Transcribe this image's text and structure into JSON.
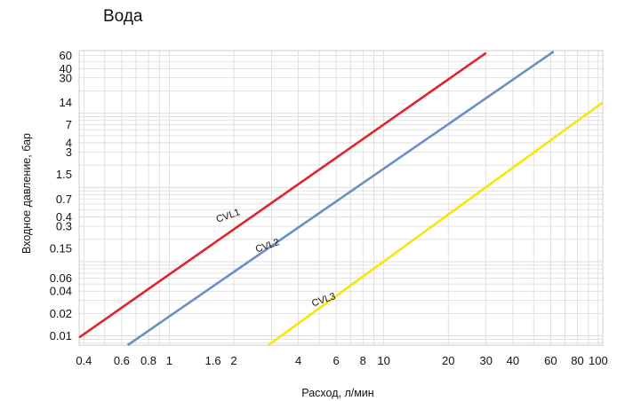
{
  "chart_data": {
    "type": "line",
    "title": "Вода",
    "xlabel": "Расход, л/мин",
    "ylabel": "Входное давление, бар",
    "x_scale": "log",
    "y_scale": "log",
    "xlim": [
      0.38,
      105
    ],
    "ylim": [
      0.0075,
      70
    ],
    "grid": true,
    "x_ticks": [
      {
        "v": 0.4,
        "label": "0.4"
      },
      {
        "v": 0.6,
        "label": "0.6"
      },
      {
        "v": 0.8,
        "label": "0.8"
      },
      {
        "v": 1,
        "label": "1"
      },
      {
        "v": 1.6,
        "label": "1.6"
      },
      {
        "v": 2,
        "label": "2"
      },
      {
        "v": 4,
        "label": "4"
      },
      {
        "v": 6,
        "label": "6"
      },
      {
        "v": 8,
        "label": "8"
      },
      {
        "v": 10,
        "label": "10"
      },
      {
        "v": 20,
        "label": "20"
      },
      {
        "v": 30,
        "label": "30"
      },
      {
        "v": 40,
        "label": "40"
      },
      {
        "v": 60,
        "label": "60"
      },
      {
        "v": 80,
        "label": "80"
      },
      {
        "v": 100,
        "label": "100"
      }
    ],
    "y_ticks": [
      {
        "v": 0.01,
        "label": "0.01"
      },
      {
        "v": 0.02,
        "label": "0.02"
      },
      {
        "v": 0.04,
        "label": "0.04"
      },
      {
        "v": 0.06,
        "label": "0.06"
      },
      {
        "v": 0.15,
        "label": "0.15"
      },
      {
        "v": 0.3,
        "label": "0.3"
      },
      {
        "v": 0.4,
        "label": "0.4"
      },
      {
        "v": 0.7,
        "label": "0.7"
      },
      {
        "v": 1.5,
        "label": "1.5"
      },
      {
        "v": 3,
        "label": "3"
      },
      {
        "v": 4,
        "label": "4"
      },
      {
        "v": 7,
        "label": "7"
      },
      {
        "v": 14,
        "label": "14"
      },
      {
        "v": 30,
        "label": "30"
      },
      {
        "v": 40,
        "label": "40"
      },
      {
        "v": 60,
        "label": "60"
      }
    ],
    "series": [
      {
        "name": "CVL1",
        "color": "#e0242a",
        "x": [
          0.38,
          30
        ],
        "y": [
          0.0095,
          65
        ]
      },
      {
        "name": "CVL2",
        "color": "#6b8ec6",
        "x": [
          0.64,
          62
        ],
        "y": [
          0.0075,
          68
        ]
      },
      {
        "name": "CVL3",
        "color": "#f6e60c",
        "x": [
          2.9,
          105
        ],
        "y": [
          0.0075,
          14
        ]
      }
    ],
    "annotations": [
      {
        "text": "CVL1",
        "x": 1.9,
        "y": 0.38
      },
      {
        "text": "CVL2",
        "x": 2.9,
        "y": 0.15
      },
      {
        "text": "CVL3",
        "x": 5.3,
        "y": 0.028
      }
    ]
  }
}
